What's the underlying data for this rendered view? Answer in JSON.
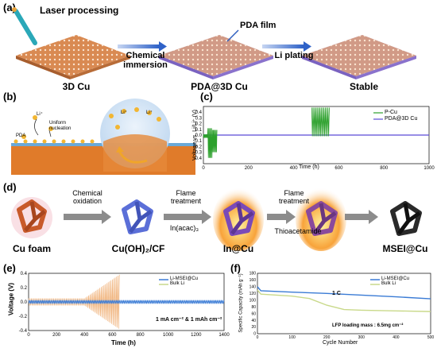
{
  "panel_a": {
    "letter": "(a)",
    "laser_label": "Laser processing",
    "step1": "Chemical immersion",
    "step2": "Li plating",
    "film_label": "PDA film",
    "captions": [
      "3D Cu",
      "PDA@3D Cu",
      "Stable"
    ]
  },
  "panel_b": {
    "letter": "(b)",
    "pda_label": "PDA",
    "uniform_label": "Uniform nucleation",
    "li_ion": "Li⁺"
  },
  "panel_c": {
    "letter": "(c)",
    "chart_data": {
      "type": "line",
      "xlabel": "Time (h)",
      "ylabel": "Voltage vs. Li/Li⁺ (V)",
      "xlim": [
        0,
        1000
      ],
      "ylim": [
        -0.5,
        0.5
      ],
      "xticks": [
        0,
        200,
        400,
        600,
        800,
        1000
      ],
      "yticks": [
        -0.4,
        -0.3,
        -0.2,
        -0.1,
        0.0,
        0.1,
        0.2,
        0.3,
        0.4
      ],
      "series": [
        {
          "name": "P-Cu",
          "color": "#2ca02c"
        },
        {
          "name": "PDA@3D Cu",
          "color": "#5b4bd6"
        }
      ]
    }
  },
  "panel_d": {
    "letter": "(d)",
    "captions": [
      "Cu foam",
      "Cu(OH)₂/CF",
      "In@Cu",
      "MSEI@Cu"
    ],
    "arrow1": [
      "Chemical",
      "oxidation"
    ],
    "arrow2": [
      "Flame",
      "treatment"
    ],
    "arrow2_sub": "In(acac)₃",
    "arrow3": [
      "Flame",
      "treatment"
    ],
    "arrow3_sub": "Thioacetamide"
  },
  "panel_e": {
    "letter": "(e)",
    "annotation": "1 mA cm⁻² & 1 mAh cm⁻²",
    "chart_data": {
      "type": "line",
      "xlabel": "Time (h)",
      "ylabel": "Voltage (V)",
      "xlim": [
        0,
        1400
      ],
      "ylim": [
        -0.4,
        0.4
      ],
      "xticks": [
        0,
        200,
        400,
        600,
        800,
        1000,
        1200,
        1400
      ],
      "yticks": [
        -0.4,
        -0.2,
        0.0,
        0.2,
        0.4
      ],
      "series": [
        {
          "name": "Li-MSEI@Cu",
          "color": "#3a7bd5"
        },
        {
          "name": "Bulk Li",
          "color": "#f0b27a"
        }
      ]
    }
  },
  "panel_f": {
    "letter": "(f)",
    "annotation_rate": "1 C",
    "annotation_loading": "LFP loading mass : 6.5mg cm⁻²",
    "chart_data": {
      "type": "line",
      "xlabel": "Cycle Number",
      "ylabel": "Specific Capacity (mAh g⁻¹)",
      "xlim": [
        0,
        500
      ],
      "ylim": [
        0,
        180
      ],
      "xticks": [
        0,
        100,
        200,
        300,
        400,
        500
      ],
      "yticks": [
        0,
        20,
        40,
        60,
        80,
        100,
        120,
        140,
        160,
        180
      ],
      "series": [
        {
          "name": "Li-MSEI@Cu",
          "color": "#3a7bd5",
          "x": [
            0,
            10,
            100,
            200,
            300,
            400,
            500
          ],
          "y": [
            140,
            128,
            124,
            120,
            115,
            110,
            104
          ]
        },
        {
          "name": "Bulk Li",
          "color": "#c9d98a",
          "x": [
            0,
            10,
            100,
            150,
            200,
            250,
            300,
            400,
            500
          ],
          "y": [
            130,
            118,
            112,
            105,
            85,
            72,
            70,
            68,
            66
          ]
        }
      ]
    }
  }
}
